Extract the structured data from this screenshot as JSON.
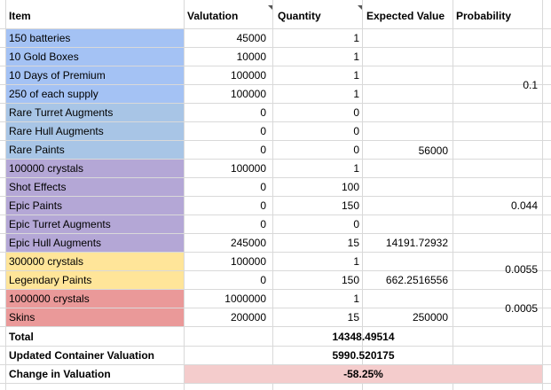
{
  "colors": {
    "blue": "#a4c2f4",
    "blue_alt": "#a8c5e6",
    "purple": "#b4a7d6",
    "yellow": "#ffe599",
    "red": "#ea9999",
    "change_bg": "#f4cccc"
  },
  "header": {
    "item": "Item",
    "valuation": "Valutation",
    "quantity": "Quantity",
    "expected_value": "Expected Value",
    "probability": "Probability"
  },
  "rows": [
    {
      "item": "150 batteries",
      "valuation": "45000",
      "quantity": "1",
      "group": "blue"
    },
    {
      "item": "10 Gold Boxes",
      "valuation": "10000",
      "quantity": "1",
      "group": "blue"
    },
    {
      "item": "10 Days of Premium",
      "valuation": "100000",
      "quantity": "1",
      "group": "blue"
    },
    {
      "item": "250 of each supply",
      "valuation": "100000",
      "quantity": "1",
      "group": "blue"
    },
    {
      "item": "Rare Turret Augments",
      "valuation": "0",
      "quantity": "0",
      "group": "blue_alt"
    },
    {
      "item": "Rare Hull Augments",
      "valuation": "0",
      "quantity": "0",
      "group": "blue_alt"
    },
    {
      "item": "Rare Paints",
      "valuation": "0",
      "quantity": "0",
      "group": "blue_alt"
    },
    {
      "item": "100000 crystals",
      "valuation": "100000",
      "quantity": "1",
      "group": "purple"
    },
    {
      "item": "Shot Effects",
      "valuation": "0",
      "quantity": "100",
      "group": "purple"
    },
    {
      "item": "Epic Paints",
      "valuation": "0",
      "quantity": "150",
      "group": "purple"
    },
    {
      "item": "Epic Turret Augments",
      "valuation": "0",
      "quantity": "0",
      "group": "purple"
    },
    {
      "item": "Epic Hull Augments",
      "valuation": "245000",
      "quantity": "15",
      "group": "purple"
    },
    {
      "item": "300000 crystals",
      "valuation": "100000",
      "quantity": "1",
      "group": "yellow"
    },
    {
      "item": "Legendary Paints",
      "valuation": "0",
      "quantity": "150",
      "group": "yellow"
    },
    {
      "item": "1000000 crystals",
      "valuation": "1000000",
      "quantity": "1",
      "group": "red"
    },
    {
      "item": "Skins",
      "valuation": "200000",
      "quantity": "15",
      "group": "red"
    }
  ],
  "expected_values": [
    "56000",
    "14191.72932",
    "662.2516556",
    "250000"
  ],
  "probabilities": [
    "0.1",
    "0.044",
    "0.0055",
    "0.0005"
  ],
  "summary": {
    "total_label": "Total",
    "total_value": "14348.49514",
    "updated_label": "Updated Container Valuation",
    "updated_value": "5990.520175",
    "change_label": "Change in Valuation",
    "change_value": "-58.25%"
  }
}
